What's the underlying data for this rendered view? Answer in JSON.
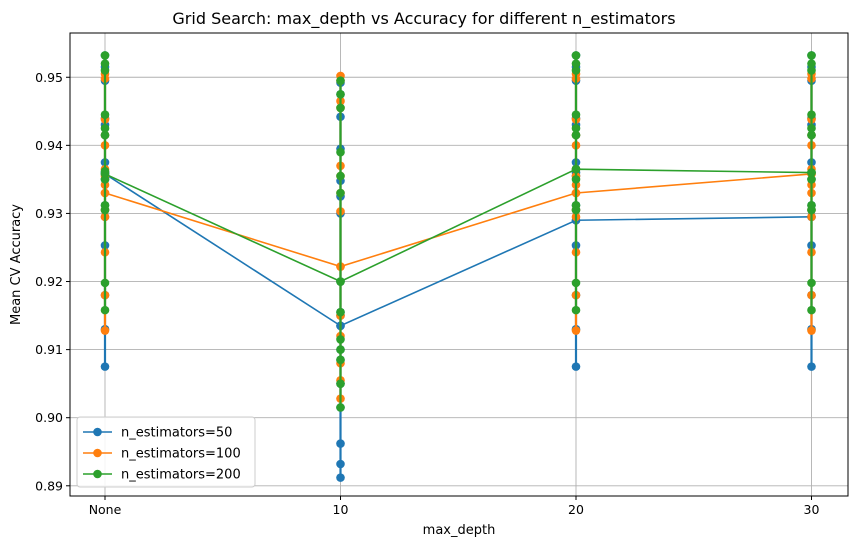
{
  "chart_data": {
    "type": "line",
    "title": "Grid Search: max_depth vs Accuracy for different n_estimators",
    "xlabel": "max_depth",
    "ylabel": "Mean CV Accuracy",
    "categories": [
      "None",
      "10",
      "20",
      "30"
    ],
    "ylim": [
      0.8885,
      0.9565
    ],
    "yticks": [
      "0.89",
      "0.90",
      "0.91",
      "0.92",
      "0.93",
      "0.94",
      "0.95"
    ],
    "grid": true,
    "legend_position": "lower-left",
    "series": [
      {
        "name": "n_estimators=50",
        "color": "#1f77b4",
        "points": [
          {
            "x": "None",
            "values": [
              0.9075,
              0.913,
              0.918,
              0.9253,
              0.9295,
              0.9305,
              0.9312,
              0.935,
              0.936,
              0.9375,
              0.9415,
              0.943,
              0.944,
              0.9495,
              0.9515,
              0.9532
            ]
          },
          {
            "x": "10",
            "values": [
              0.8912,
              0.8932,
              0.8962,
              0.9015,
              0.905,
              0.9085,
              0.91,
              0.9135,
              0.915,
              0.9155,
              0.92,
              0.93,
              0.9325,
              0.9348,
              0.9395,
              0.9442,
              0.9475,
              0.9492
            ]
          },
          {
            "x": "20",
            "values": [
              0.9075,
              0.913,
              0.918,
              0.9253,
              0.929,
              0.9305,
              0.9312,
              0.9355,
              0.936,
              0.9375,
              0.9415,
              0.943,
              0.944,
              0.9495,
              0.9515,
              0.9532
            ]
          },
          {
            "x": "30",
            "values": [
              0.9075,
              0.913,
              0.918,
              0.9253,
              0.9295,
              0.9305,
              0.9312,
              0.935,
              0.936,
              0.9375,
              0.9415,
              0.943,
              0.944,
              0.9495,
              0.9515,
              0.9532
            ]
          }
        ],
        "line": [
          0.9358,
          0.9135,
          0.929,
          0.9295
        ]
      },
      {
        "name": "n_estimators=100",
        "color": "#ff7f0e",
        "points": [
          {
            "x": "None",
            "values": [
              0.9128,
              0.918,
              0.9243,
              0.9295,
              0.9305,
              0.933,
              0.9342,
              0.9355,
              0.9365,
              0.94,
              0.9415,
              0.9438,
              0.9498,
              0.9505
            ]
          },
          {
            "x": "10",
            "values": [
              0.9028,
              0.9055,
              0.908,
              0.912,
              0.915,
              0.9222,
              0.9303,
              0.933,
              0.9355,
              0.937,
              0.9455,
              0.9465,
              0.9495,
              0.9502
            ]
          },
          {
            "x": "20",
            "values": [
              0.9128,
              0.918,
              0.9243,
              0.9295,
              0.9305,
              0.933,
              0.9342,
              0.9355,
              0.9365,
              0.94,
              0.9415,
              0.9438,
              0.9498,
              0.9505
            ]
          },
          {
            "x": "30",
            "values": [
              0.9128,
              0.918,
              0.9243,
              0.9295,
              0.9305,
              0.933,
              0.9342,
              0.9358,
              0.9365,
              0.94,
              0.9415,
              0.9438,
              0.9498,
              0.9505
            ]
          }
        ],
        "line": [
          0.933,
          0.9222,
          0.933,
          0.9358
        ]
      },
      {
        "name": "n_estimators=200",
        "color": "#2ca02c",
        "points": [
          {
            "x": "None",
            "values": [
              0.9158,
              0.9198,
              0.9305,
              0.9312,
              0.935,
              0.9362,
              0.9415,
              0.9425,
              0.9445,
              0.951,
              0.952,
              0.9532
            ]
          },
          {
            "x": "10",
            "values": [
              0.9015,
              0.905,
              0.9085,
              0.91,
              0.9115,
              0.9155,
              0.92,
              0.933,
              0.9355,
              0.939,
              0.9455,
              0.9475,
              0.9495
            ]
          },
          {
            "x": "20",
            "values": [
              0.9158,
              0.9198,
              0.9305,
              0.9312,
              0.935,
              0.9365,
              0.9415,
              0.9425,
              0.9445,
              0.951,
              0.952,
              0.9532
            ]
          },
          {
            "x": "30",
            "values": [
              0.9158,
              0.9198,
              0.9305,
              0.9312,
              0.935,
              0.936,
              0.9415,
              0.9425,
              0.9445,
              0.951,
              0.952,
              0.9532
            ]
          }
        ],
        "line": [
          0.9358,
          0.92,
          0.9365,
          0.936
        ]
      }
    ]
  }
}
